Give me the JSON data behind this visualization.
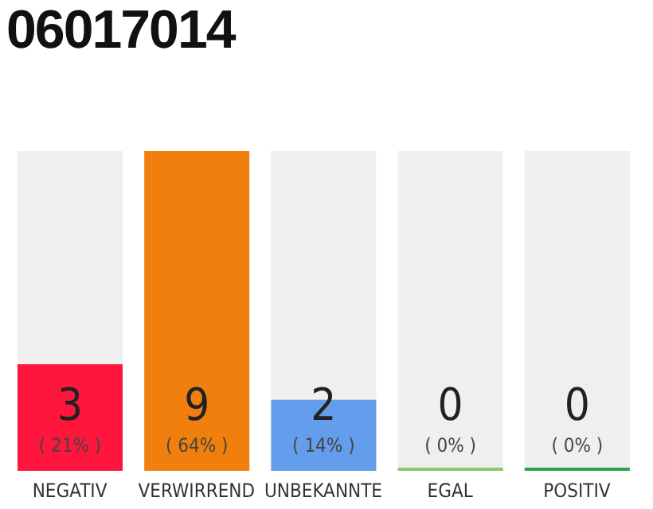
{
  "chart_data": {
    "type": "bar",
    "title": "06017014",
    "categories": [
      "NEGATIV",
      "VERWIRREND",
      "UNBEKANNTE",
      "EGAL",
      "POSITIV"
    ],
    "values": [
      3,
      9,
      2,
      0,
      0
    ],
    "colors": [
      "#ff163d",
      "#f07f0e",
      "#659ded",
      "#8bc867",
      "#2ea24a"
    ],
    "tick_labels": "x",
    "data_labels": true,
    "annotations": [
      "( 21% )",
      "( 64% )",
      "( 14% )",
      "( 0% )",
      "( 0% )"
    ]
  }
}
